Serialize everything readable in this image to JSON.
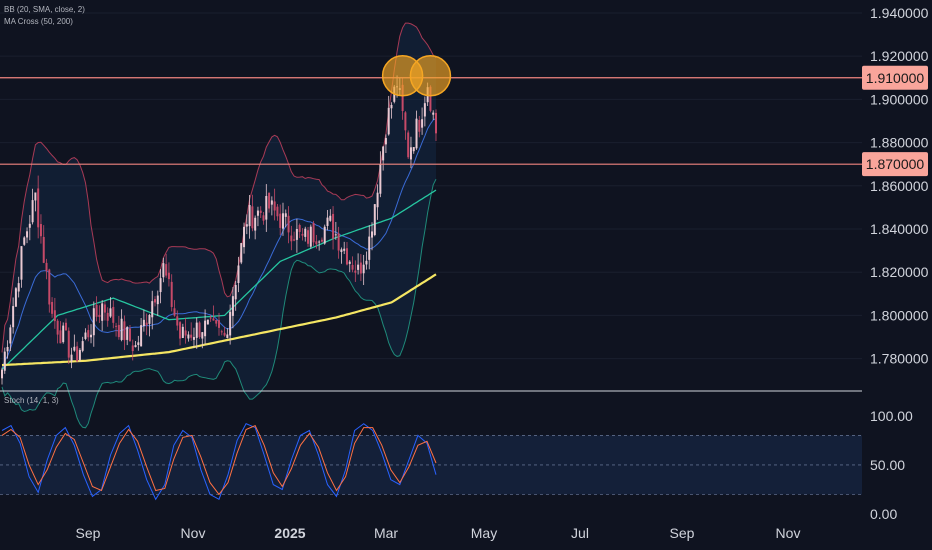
{
  "indicators": {
    "bb_label": "BB (20, SMA, close, 2)",
    "ma_label": "MA Cross (50, 200)",
    "stoch_label": "Stoch (14, 1, 3)"
  },
  "colors": {
    "background": "#0f1320",
    "candle_up": "#e9c9d2",
    "candle_down": "#c64a68",
    "bb_upper": "#a83a55",
    "bb_middle": "#3a6bd6",
    "bb_lower": "#1f8a7a",
    "ma50": "#26c6a0",
    "ma200": "#f5e663",
    "resistance": "#f0857f",
    "label_box": "#f9a59b",
    "highlight": "#f5a623",
    "stoch_k": "#2962ff",
    "stoch_d": "#ff7043"
  },
  "chart_data": [
    {
      "type": "candlestick",
      "title": "",
      "ylim": [
        1.765,
        1.946
      ],
      "y_ticks": [
        "1.940000",
        "1.920000",
        "1.900000",
        "1.880000",
        "1.860000",
        "1.840000",
        "1.820000",
        "1.800000",
        "1.780000"
      ],
      "y_tick_values": [
        1.94,
        1.92,
        1.9,
        1.88,
        1.86,
        1.84,
        1.82,
        1.8,
        1.78
      ],
      "x_labels": [
        "Sep",
        "Nov",
        "2025",
        "Mar",
        "May",
        "Jul",
        "Sep",
        "Nov"
      ],
      "x_label_bold": [
        false,
        false,
        true,
        false,
        false,
        false,
        false,
        false
      ],
      "price_series_keypoints": [
        {
          "bar": 0,
          "close": 1.775
        },
        {
          "bar": 8,
          "close": 1.835
        },
        {
          "bar": 12,
          "close": 1.855
        },
        {
          "bar": 18,
          "close": 1.8
        },
        {
          "bar": 26,
          "close": 1.78
        },
        {
          "bar": 36,
          "close": 1.805
        },
        {
          "bar": 48,
          "close": 1.785
        },
        {
          "bar": 58,
          "close": 1.822
        },
        {
          "bar": 64,
          "close": 1.79
        },
        {
          "bar": 72,
          "close": 1.795
        },
        {
          "bar": 80,
          "close": 1.79
        },
        {
          "bar": 88,
          "close": 1.845
        },
        {
          "bar": 96,
          "close": 1.85
        },
        {
          "bar": 108,
          "close": 1.835
        },
        {
          "bar": 118,
          "close": 1.842
        },
        {
          "bar": 128,
          "close": 1.82
        },
        {
          "bar": 132,
          "close": 1.835
        },
        {
          "bar": 138,
          "close": 1.888
        },
        {
          "bar": 142,
          "close": 1.908
        },
        {
          "bar": 146,
          "close": 1.876
        },
        {
          "bar": 150,
          "close": 1.89
        },
        {
          "bar": 153,
          "close": 1.908
        },
        {
          "bar": 156,
          "close": 1.885
        }
      ],
      "ma200_keypoints": [
        {
          "bar": 0,
          "value": 1.777
        },
        {
          "bar": 30,
          "value": 1.779
        },
        {
          "bar": 60,
          "value": 1.783
        },
        {
          "bar": 90,
          "value": 1.791
        },
        {
          "bar": 120,
          "value": 1.799
        },
        {
          "bar": 140,
          "value": 1.806
        },
        {
          "bar": 156,
          "value": 1.819
        }
      ],
      "ma50_keypoints": [
        {
          "bar": 0,
          "value": 1.775
        },
        {
          "bar": 20,
          "value": 1.8
        },
        {
          "bar": 40,
          "value": 1.808
        },
        {
          "bar": 60,
          "value": 1.798
        },
        {
          "bar": 80,
          "value": 1.8
        },
        {
          "bar": 100,
          "value": 1.825
        },
        {
          "bar": 120,
          "value": 1.836
        },
        {
          "bar": 140,
          "value": 1.845
        },
        {
          "bar": 156,
          "value": 1.858
        }
      ],
      "resistance_levels": [
        {
          "value": 1.91,
          "label": "1.910000"
        },
        {
          "value": 1.87,
          "label": "1.870000"
        }
      ],
      "highlight_circles": [
        {
          "bar": 144,
          "value": 1.91
        },
        {
          "bar": 154,
          "value": 1.91
        }
      ]
    },
    {
      "type": "line",
      "title": "",
      "ylim": [
        -3,
        112
      ],
      "y_ticks": [
        "100.00",
        "50.00",
        "0.00"
      ],
      "y_tick_values": [
        100,
        50,
        0
      ],
      "bands": [
        20,
        80
      ],
      "series": [
        {
          "values": [
            85,
            90,
            72,
            38,
            22,
            55,
            80,
            88,
            70,
            40,
            18,
            25,
            60,
            82,
            90,
            65,
            35,
            15,
            30,
            70,
            85,
            78,
            45,
            20,
            15,
            40,
            75,
            92,
            88,
            60,
            30,
            25,
            55,
            80,
            85,
            60,
            30,
            18,
            45,
            85,
            92,
            85,
            62,
            35,
            30,
            55,
            80,
            72,
            40
          ]
        },
        {
          "values": [
            80,
            86,
            78,
            50,
            30,
            45,
            68,
            82,
            76,
            52,
            28,
            24,
            48,
            72,
            86,
            74,
            48,
            24,
            26,
            56,
            78,
            80,
            58,
            32,
            20,
            32,
            62,
            86,
            90,
            70,
            42,
            28,
            46,
            70,
            82,
            68,
            42,
            24,
            38,
            72,
            88,
            88,
            70,
            45,
            32,
            48,
            70,
            74,
            52
          ]
        }
      ]
    }
  ]
}
